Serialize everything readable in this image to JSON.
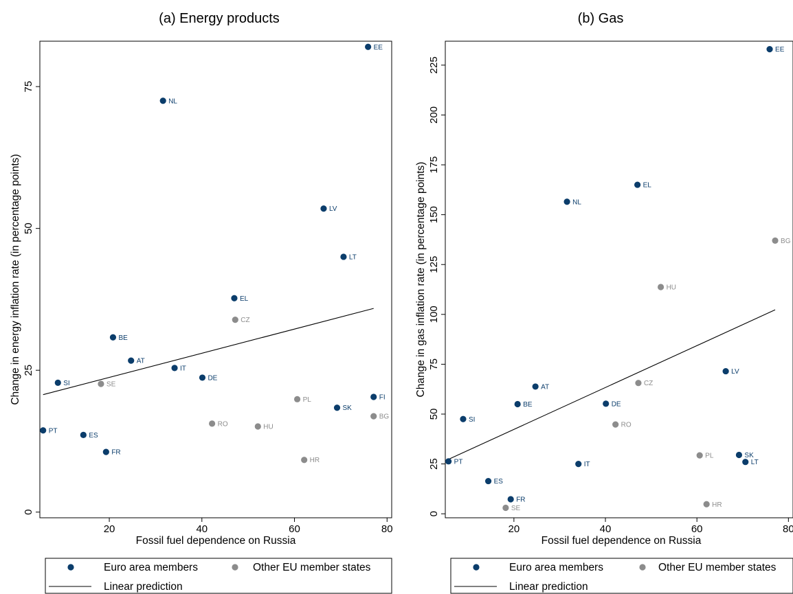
{
  "colors": {
    "euro": "#0b3d6b",
    "other": "#8c8c8c",
    "line": "#000000",
    "frame": "#000000"
  },
  "legend": {
    "euro_label": "Euro area members",
    "other_label": "Other EU member states",
    "line_label": "Linear prediction"
  },
  "chart_data": [
    {
      "type": "scatter",
      "title": "(a) Energy products",
      "xlabel": "Fossil fuel dependence on Russia",
      "ylabel": "Change in energy inflation rate (in percentage points)",
      "xlim": [
        5,
        81
      ],
      "ylim": [
        -1,
        83
      ],
      "xticks": [
        20,
        40,
        60,
        80
      ],
      "yticks": [
        0,
        25,
        50,
        75
      ],
      "grid": false,
      "legend_position": "bottom",
      "series": [
        {
          "name": "Euro area members",
          "group": "euro",
          "points": [
            {
              "label": "EE",
              "x": 75.9,
              "y": 82.0
            },
            {
              "label": "NL",
              "x": 31.6,
              "y": 72.5
            },
            {
              "label": "LV",
              "x": 66.3,
              "y": 53.5
            },
            {
              "label": "LT",
              "x": 70.6,
              "y": 45.0
            },
            {
              "label": "EL",
              "x": 47.0,
              "y": 37.7
            },
            {
              "label": "BE",
              "x": 20.8,
              "y": 30.8
            },
            {
              "label": "AT",
              "x": 24.7,
              "y": 26.7
            },
            {
              "label": "IT",
              "x": 34.1,
              "y": 25.4
            },
            {
              "label": "DE",
              "x": 40.1,
              "y": 23.7
            },
            {
              "label": "SI",
              "x": 8.9,
              "y": 22.8
            },
            {
              "label": "FI",
              "x": 77.1,
              "y": 20.3
            },
            {
              "label": "SK",
              "x": 69.2,
              "y": 18.4
            },
            {
              "label": "PT",
              "x": 5.7,
              "y": 14.4
            },
            {
              "label": "ES",
              "x": 14.4,
              "y": 13.6
            },
            {
              "label": "FR",
              "x": 19.3,
              "y": 10.6
            }
          ]
        },
        {
          "name": "Other EU member states",
          "group": "other",
          "points": [
            {
              "label": "CZ",
              "x": 47.2,
              "y": 33.9
            },
            {
              "label": "SE",
              "x": 18.2,
              "y": 22.6
            },
            {
              "label": "PL",
              "x": 60.6,
              "y": 19.9
            },
            {
              "label": "BG",
              "x": 77.1,
              "y": 16.9
            },
            {
              "label": "RO",
              "x": 42.2,
              "y": 15.6
            },
            {
              "label": "HU",
              "x": 52.1,
              "y": 15.1
            },
            {
              "label": "HR",
              "x": 62.1,
              "y": 9.2
            }
          ]
        }
      ],
      "fit_line": {
        "name": "Linear prediction",
        "x": [
          5.7,
          77.1
        ],
        "y": [
          20.7,
          35.9
        ]
      }
    },
    {
      "type": "scatter",
      "title": "(b) Gas",
      "xlabel": "Fossil fuel dependence on Russia",
      "ylabel": "Change in gas inflation rate (in percentage points)",
      "xlim": [
        5,
        81
      ],
      "ylim": [
        -2,
        237
      ],
      "xticks": [
        20,
        40,
        60,
        80
      ],
      "yticks": [
        0,
        25,
        50,
        75,
        100,
        125,
        150,
        175,
        200,
        225
      ],
      "grid": false,
      "legend_position": "bottom",
      "series": [
        {
          "name": "Euro area members",
          "group": "euro",
          "points": [
            {
              "label": "EE",
              "x": 75.9,
              "y": 233.0
            },
            {
              "label": "EL",
              "x": 47.0,
              "y": 165.0
            },
            {
              "label": "NL",
              "x": 31.6,
              "y": 156.5
            },
            {
              "label": "LV",
              "x": 66.3,
              "y": 71.5
            },
            {
              "label": "AT",
              "x": 24.7,
              "y": 63.8
            },
            {
              "label": "BE",
              "x": 20.8,
              "y": 55.0
            },
            {
              "label": "DE",
              "x": 40.1,
              "y": 55.2
            },
            {
              "label": "SI",
              "x": 8.9,
              "y": 47.5
            },
            {
              "label": "SK",
              "x": 69.2,
              "y": 29.5
            },
            {
              "label": "PT",
              "x": 5.7,
              "y": 26.3
            },
            {
              "label": "LT",
              "x": 70.6,
              "y": 26.0
            },
            {
              "label": "IT",
              "x": 34.1,
              "y": 25.0
            },
            {
              "label": "ES",
              "x": 14.4,
              "y": 16.4
            },
            {
              "label": "FR",
              "x": 19.3,
              "y": 7.3
            }
          ]
        },
        {
          "name": "Other EU member states",
          "group": "other",
          "points": [
            {
              "label": "BG",
              "x": 77.1,
              "y": 137.0
            },
            {
              "label": "HU",
              "x": 52.1,
              "y": 113.7
            },
            {
              "label": "CZ",
              "x": 47.2,
              "y": 65.6
            },
            {
              "label": "RO",
              "x": 42.2,
              "y": 44.8
            },
            {
              "label": "PL",
              "x": 60.6,
              "y": 29.3
            },
            {
              "label": "HR",
              "x": 62.1,
              "y": 4.8
            },
            {
              "label": "SE",
              "x": 18.2,
              "y": 3.0
            }
          ]
        }
      ],
      "fit_line": {
        "name": "Linear prediction",
        "x": [
          5.7,
          77.1
        ],
        "y": [
          27.3,
          102.3
        ]
      }
    }
  ]
}
